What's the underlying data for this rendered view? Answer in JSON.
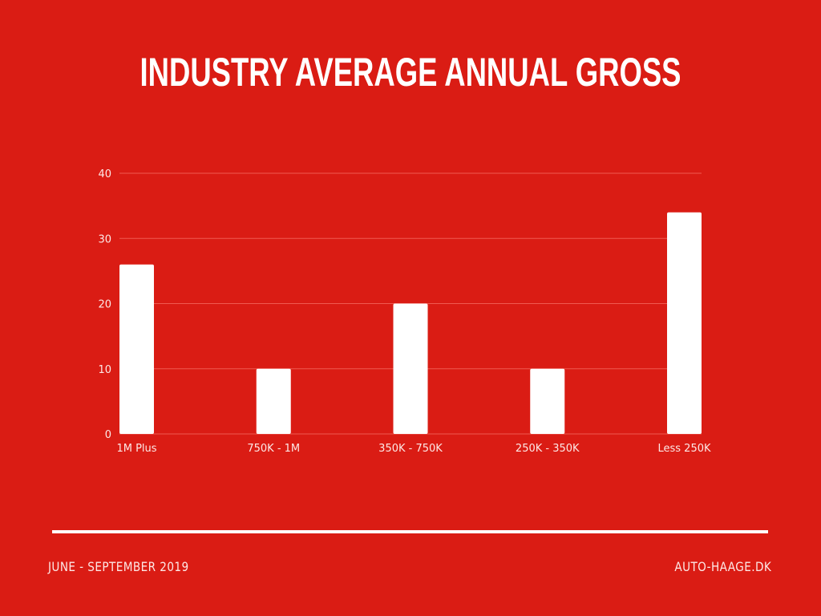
{
  "colors": {
    "background": "#da1c14",
    "bar": "#ffffff",
    "grid": "#ef5a50",
    "text": "#fde8e6"
  },
  "chart_data": {
    "type": "bar",
    "title": "INDUSTRY AVERAGE ANNUAL GROSS",
    "categories": [
      "1M Plus",
      "750K - 1M",
      "350K - 750K",
      "250K - 350K",
      "Less 250K"
    ],
    "values": [
      26,
      10,
      20,
      10,
      34
    ],
    "yticks": [
      "0",
      "10",
      "20",
      "30",
      "40"
    ],
    "ylim": [
      0,
      40
    ],
    "xlabel": "",
    "ylabel": "",
    "grid": true,
    "legend": "none"
  },
  "footer": {
    "left": "JUNE - SEPTEMBER 2019",
    "right": "AUTO-HAAGE.DK"
  }
}
